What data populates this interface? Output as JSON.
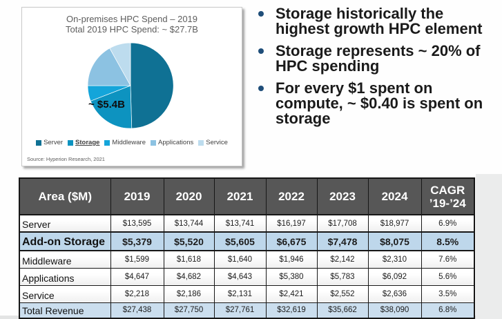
{
  "pie_panel": {
    "title_line1": "On-premises HPC Spend – 2019",
    "title_line2": "Total 2019 HPC Spend: ~ $27.7B",
    "callout": "~ $5.4B",
    "source": "Source: Hyperion Research, 2021",
    "legend": [
      {
        "label": "Server",
        "color": "#0f7194",
        "emphasis": false
      },
      {
        "label": "Storage",
        "color": "#0d93c0",
        "emphasis": true
      },
      {
        "label": "Middleware",
        "color": "#14a5da",
        "emphasis": false
      },
      {
        "label": "Applications",
        "color": "#8cc2e2",
        "emphasis": false
      },
      {
        "label": "Service",
        "color": "#bddcee",
        "emphasis": false
      }
    ]
  },
  "bullets": [
    "Storage historically the highest growth HPC element",
    "Storage represents ~ 20% of HPC spending",
    "For every $1 spent on compute, ~ $0.40 is spent on storage"
  ],
  "chart_data": [
    {
      "type": "pie",
      "title": "On-premises HPC Spend – 2019",
      "subtitle": "Total 2019 HPC Spend: ~ $27.7B",
      "labels": [
        "Server",
        "Storage",
        "Middleware",
        "Applications",
        "Service"
      ],
      "values": [
        13595,
        5379,
        1599,
        4647,
        2218
      ],
      "unit": "$M",
      "annotation": "~ $5.4B",
      "start_angle_deg": 0,
      "direction": "clockwise",
      "legend_position": "bottom"
    },
    {
      "type": "table",
      "columns": [
        "Area ($M)",
        "2019",
        "2020",
        "2021",
        "2022",
        "2023",
        "2024",
        "CAGR\n’19-’24"
      ],
      "rows": [
        {
          "area": "Server",
          "values": [
            13595,
            13744,
            13741,
            16197,
            17708,
            18977
          ],
          "cagr_pct": 6.9,
          "style": "plain"
        },
        {
          "area": "Add-on Storage",
          "values": [
            5379,
            5520,
            5605,
            6675,
            7478,
            8075
          ],
          "cagr_pct": 8.5,
          "style": "addon"
        },
        {
          "area": "Middleware",
          "values": [
            1599,
            1618,
            1640,
            1946,
            2142,
            2310
          ],
          "cagr_pct": 7.6,
          "style": "plain"
        },
        {
          "area": "Applications",
          "values": [
            4647,
            4682,
            4643,
            5380,
            5783,
            6092
          ],
          "cagr_pct": 5.6,
          "style": "plain"
        },
        {
          "area": "Service",
          "values": [
            2218,
            2186,
            2131,
            2421,
            2552,
            2636
          ],
          "cagr_pct": 3.5,
          "style": "plain"
        },
        {
          "area": "Total Revenue",
          "values": [
            27438,
            27750,
            27761,
            32619,
            35662,
            38090
          ],
          "cagr_pct": 6.8,
          "style": "total"
        }
      ]
    }
  ],
  "colors": {
    "header_bg": "#575757",
    "addon_row_bg": "#bed7eb",
    "total_row_bg": "#cbdeee",
    "bullet_dot": "#1f4e79",
    "table_border": "#161616"
  }
}
